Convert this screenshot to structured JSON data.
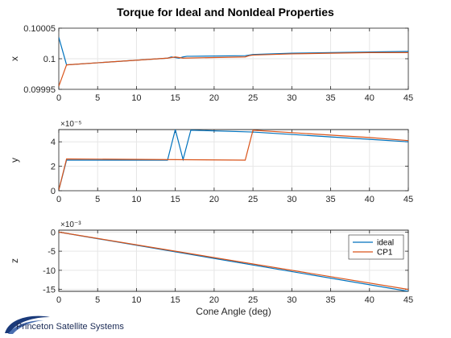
{
  "figure": {
    "title": "Torque for Ideal and NonIdeal Properties",
    "logo_text": "Princeton Satellite Systems"
  },
  "chart_data": [
    {
      "type": "line",
      "ylabel": "x",
      "xlabel": "",
      "xlim": [
        0,
        45
      ],
      "ylim": [
        0.09995,
        0.10005
      ],
      "xticks": [
        0,
        5,
        10,
        15,
        20,
        25,
        30,
        35,
        40,
        45
      ],
      "xtick_labels": [
        "0",
        "5",
        "10",
        "15",
        "20",
        "25",
        "30",
        "35",
        "40",
        "45"
      ],
      "yticks": [
        0.09995,
        0.1,
        0.10005
      ],
      "ytick_labels": [
        "0.09995",
        "0.1",
        "0.10005"
      ],
      "exponent": "",
      "grid": true,
      "series": [
        {
          "name": "ideal",
          "color": "#0072BD",
          "x": [
            0,
            1,
            14,
            14.5,
            15,
            15.5,
            16,
            16.5,
            17,
            24,
            24.5,
            25,
            30,
            35,
            40,
            45
          ],
          "y": [
            0.100035,
            0.09999,
            0.100001,
            0.100003,
            0.100002,
            0.100001,
            0.100003,
            0.100004,
            0.100004,
            0.100005,
            0.100006,
            0.100007,
            0.100009,
            0.10001,
            0.100011,
            0.100012
          ]
        },
        {
          "name": "CP1",
          "color": "#D95319",
          "x": [
            0,
            1,
            14,
            14.5,
            15,
            15.5,
            16,
            24,
            24.5,
            25,
            30,
            35,
            40,
            45
          ],
          "y": [
            0.099955,
            0.09999,
            0.100001,
            0.100002,
            0.100003,
            0.100002,
            0.100001,
            0.100003,
            0.100005,
            0.100006,
            0.100008,
            0.100009,
            0.10001,
            0.10001
          ]
        }
      ]
    },
    {
      "type": "line",
      "ylabel": "y",
      "xlabel": "",
      "xlim": [
        0,
        45
      ],
      "ylim": [
        0,
        5
      ],
      "xticks": [
        0,
        5,
        10,
        15,
        20,
        25,
        30,
        35,
        40,
        45
      ],
      "xtick_labels": [
        "0",
        "5",
        "10",
        "15",
        "20",
        "25",
        "30",
        "35",
        "40",
        "45"
      ],
      "yticks": [
        0,
        2,
        4
      ],
      "ytick_labels": [
        "0",
        "2",
        "4"
      ],
      "exponent": "×10⁻⁵",
      "grid": true,
      "series": [
        {
          "name": "ideal",
          "color": "#0072BD",
          "x": [
            0,
            1,
            14,
            15,
            16,
            17,
            25,
            30,
            35,
            40,
            45
          ],
          "y": [
            0.05,
            2.5,
            2.5,
            5.0,
            2.55,
            4.95,
            4.8,
            4.6,
            4.4,
            4.2,
            4.0
          ],
          "_note": "values in units of 1e-5"
        },
        {
          "name": "CP1",
          "color": "#D95319",
          "x": [
            0,
            1,
            24,
            25,
            30,
            35,
            40,
            45
          ],
          "y": [
            0.05,
            2.6,
            2.5,
            4.95,
            4.75,
            4.55,
            4.35,
            4.1
          ]
        }
      ]
    },
    {
      "type": "line",
      "ylabel": "z",
      "xlabel": "Cone Angle (deg)",
      "xlim": [
        0,
        45
      ],
      "ylim": [
        -15.5,
        0.5
      ],
      "xticks": [
        0,
        5,
        10,
        15,
        20,
        25,
        30,
        35,
        40,
        45
      ],
      "xtick_labels": [
        "0",
        "5",
        "10",
        "15",
        "20",
        "25",
        "30",
        "35",
        "40",
        "45"
      ],
      "yticks": [
        0,
        -5,
        -10,
        -15
      ],
      "ytick_labels": [
        "0",
        "-5",
        "-10",
        "-15"
      ],
      "exponent": "×10⁻³",
      "grid": true,
      "legend": {
        "position": "top-right"
      },
      "series": [
        {
          "name": "ideal",
          "color": "#0072BD",
          "x": [
            0,
            45
          ],
          "y": [
            0,
            -15.5
          ]
        },
        {
          "name": "CP1",
          "color": "#D95319",
          "x": [
            0,
            45
          ],
          "y": [
            0,
            -15.0
          ]
        }
      ]
    }
  ]
}
